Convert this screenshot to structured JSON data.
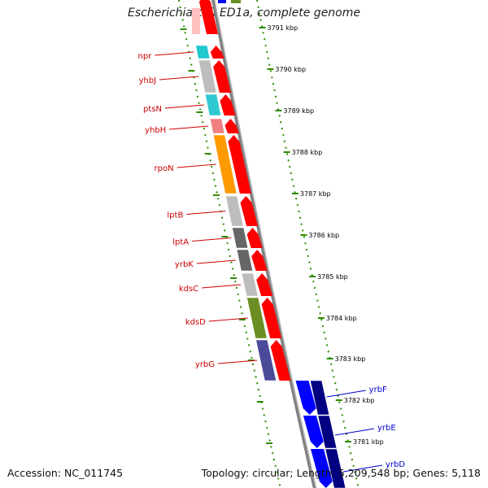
{
  "title": "Escherichia coli ED1a, complete genome",
  "footer": {
    "accession": "Accession: NC_011745",
    "topology": "Topology: circular; Length: 5,209,548 bp; Genes: 5,118"
  },
  "ticks": [
    "3791 kbp",
    "3790 kbp",
    "3789 kbp",
    "3788 kbp",
    "3787 kbp",
    "3786 kbp",
    "3785 kbp",
    "3784 kbp",
    "3783 kbp",
    "3782 kbp",
    "3781 kbp"
  ],
  "genes_left": [
    {
      "name": "npr",
      "color": "#20c8d0"
    },
    {
      "name": "yhbJ",
      "color": "#bdbdbd"
    },
    {
      "name": "ptsN",
      "color": "#30c8d0"
    },
    {
      "name": "yhbH",
      "color": "#f08080"
    },
    {
      "name": "rpoN",
      "color": "#ff9900"
    },
    {
      "name": "lptB",
      "color": "#bdbdbd"
    },
    {
      "name": "lptA",
      "color": "#666666"
    },
    {
      "name": "yrbK",
      "color": "#666666"
    },
    {
      "name": "kdsC",
      "color": "#bdbdbd"
    },
    {
      "name": "kdsD",
      "color": "#6b8e23"
    },
    {
      "name": "yrbG",
      "color": "#4b4b9a"
    }
  ],
  "genes_right": [
    {
      "name": "yrbF",
      "color": "#000080"
    },
    {
      "name": "yrbE",
      "color": "#000080"
    },
    {
      "name": "yrbD",
      "color": "#000080"
    }
  ],
  "colors": {
    "forward_arrow": "#ff0000",
    "reverse_arrow": "#0000ff",
    "tick_green": "#2e8b00",
    "backbone": "#808080"
  }
}
